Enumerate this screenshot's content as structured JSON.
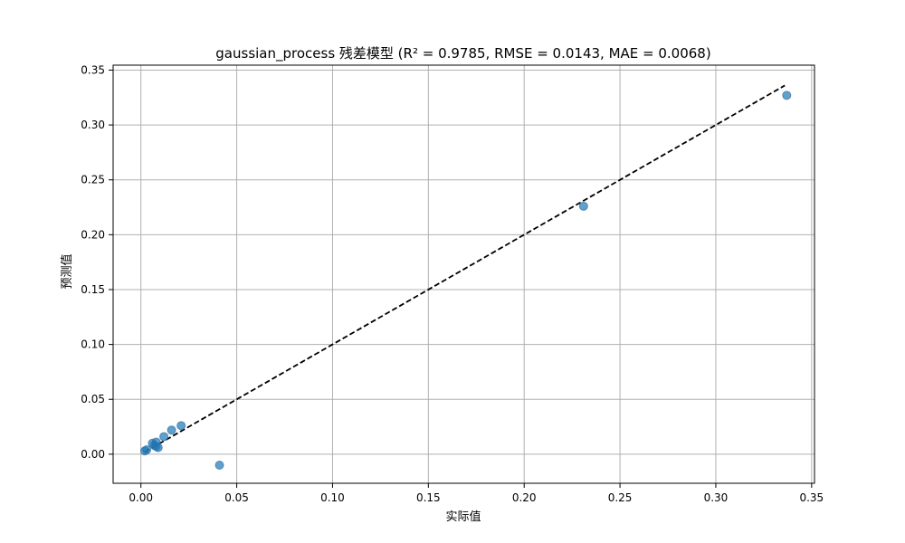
{
  "chart_data": {
    "type": "scatter",
    "title": "gaussian_process 残差模型 (R² = 0.9785, RMSE = 0.0143, MAE = 0.0068)",
    "xlabel": "实际值",
    "ylabel": "预测值",
    "xlim": [
      -0.0145,
      0.3515
    ],
    "ylim": [
      -0.0265,
      0.3545
    ],
    "xticks": [
      0.0,
      0.05,
      0.1,
      0.15,
      0.2,
      0.25,
      0.3,
      0.35
    ],
    "yticks": [
      0.0,
      0.05,
      0.1,
      0.15,
      0.2,
      0.25,
      0.3,
      0.35
    ],
    "xtick_labels": [
      "0.00",
      "0.05",
      "0.10",
      "0.15",
      "0.20",
      "0.25",
      "0.30",
      "0.35"
    ],
    "ytick_labels": [
      "0.00",
      "0.05",
      "0.10",
      "0.15",
      "0.20",
      "0.25",
      "0.30",
      "0.35"
    ],
    "grid": true,
    "point_color": "#1f77b4",
    "point_alpha": 0.7,
    "reference_line": {
      "x": [
        0.002,
        0.336
      ],
      "y": [
        0.002,
        0.336
      ],
      "color": "#000000",
      "style": "dashed"
    },
    "points": [
      {
        "x": 0.002,
        "y": 0.003
      },
      {
        "x": 0.003,
        "y": 0.004
      },
      {
        "x": 0.006,
        "y": 0.01
      },
      {
        "x": 0.007,
        "y": 0.008
      },
      {
        "x": 0.008,
        "y": 0.011
      },
      {
        "x": 0.008,
        "y": 0.007
      },
      {
        "x": 0.009,
        "y": 0.006
      },
      {
        "x": 0.012,
        "y": 0.016
      },
      {
        "x": 0.016,
        "y": 0.022
      },
      {
        "x": 0.021,
        "y": 0.026
      },
      {
        "x": 0.041,
        "y": -0.01
      },
      {
        "x": 0.231,
        "y": 0.226
      },
      {
        "x": 0.337,
        "y": 0.327
      }
    ]
  }
}
